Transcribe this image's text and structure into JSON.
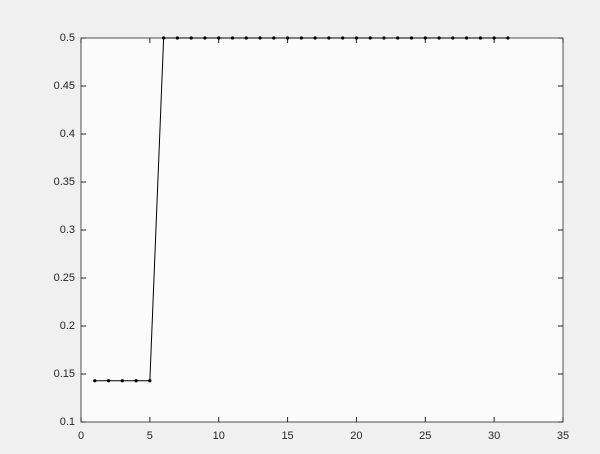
{
  "chart_data": {
    "type": "line",
    "x": [
      1,
      2,
      3,
      4,
      5,
      6,
      7,
      8,
      9,
      10,
      11,
      12,
      13,
      14,
      15,
      16,
      17,
      18,
      19,
      20,
      21,
      22,
      23,
      24,
      25,
      26,
      27,
      28,
      29,
      30,
      31
    ],
    "series": [
      {
        "color": "#000000",
        "values": [
          0.143,
          0.143,
          0.143,
          0.143,
          0.143,
          0.5,
          0.5,
          0.5,
          0.5,
          0.5,
          0.5,
          0.5,
          0.5,
          0.5,
          0.5,
          0.5,
          0.5,
          0.5,
          0.5,
          0.5,
          0.5,
          0.5,
          0.5,
          0.5,
          0.5,
          0.5,
          0.5,
          0.5,
          0.5,
          0.5,
          0.5
        ]
      }
    ],
    "xlim": [
      0,
      35
    ],
    "xticks": [
      0,
      5,
      10,
      15,
      20,
      25,
      30,
      35
    ],
    "ylim": [
      0.1,
      0.5
    ],
    "yticks": [
      0.1,
      0.15,
      0.2,
      0.25,
      0.3,
      0.35,
      0.4,
      0.45,
      0.5
    ],
    "grid": false,
    "markers": true
  }
}
